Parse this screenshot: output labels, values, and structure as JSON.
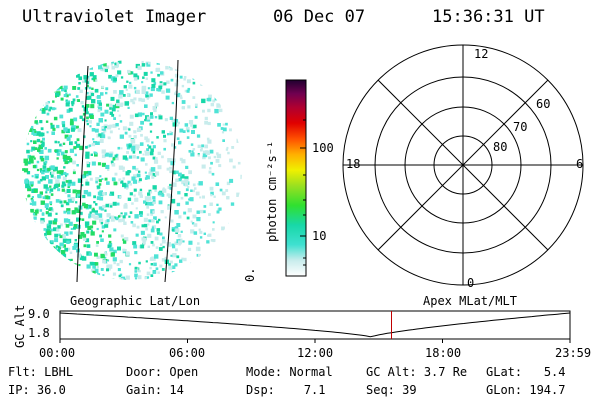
{
  "header": {
    "instrument": "Ultraviolet Imager",
    "date": "06 Dec 07",
    "time": "15:36:31 UT"
  },
  "colorbar": {
    "unit_label": "photon cm⁻²s⁻¹",
    "ticks": [
      "100",
      "10"
    ],
    "small_mark": "0."
  },
  "polar": {
    "mlt_labels": {
      "top": "12",
      "left": "18",
      "right": "6",
      "bottom": "0"
    },
    "lat_labels": [
      "60",
      "70",
      "80"
    ]
  },
  "timeline": {
    "left_label": "Geographic Lat/Lon",
    "right_label": "Apex MLat/MLT",
    "y_axis_label": "GC Alt",
    "y_ticks": [
      "9.0",
      "1.8"
    ],
    "x_ticks": [
      "00:00",
      "06:00",
      "12:00",
      "18:00",
      "23:59"
    ],
    "current_time_fraction": 0.65,
    "altitude_min_fraction": 0.61
  },
  "footer": {
    "filter": {
      "label": "Flt:",
      "value": "LBHL"
    },
    "ip": {
      "label": "IP:",
      "value": "36.0"
    },
    "door": {
      "label": "Door:",
      "value": "Open"
    },
    "gain": {
      "label": "Gain:",
      "value": "14"
    },
    "mode": {
      "label": "Mode:",
      "value": "Normal"
    },
    "dsp": {
      "label": "Dsp:",
      "value": "7.1"
    },
    "gc_alt": {
      "label": "GC Alt:",
      "value": "3.7 Re"
    },
    "seq": {
      "label": "Seq:",
      "value": "39"
    },
    "glat": {
      "label": "GLat:",
      "value": "5.4"
    },
    "glon": {
      "label": "GLon:",
      "value": "194.7"
    }
  }
}
